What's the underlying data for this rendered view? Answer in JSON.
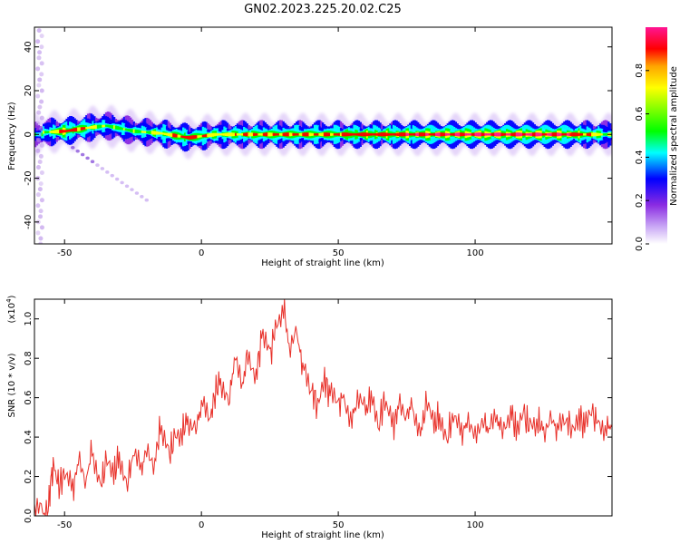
{
  "title": "GN02.2023.225.20.02.C25",
  "chart_data": [
    {
      "type": "heatmap",
      "xlabel": "Height of straight line (km)",
      "ylabel": "Frequency (Hz)",
      "xlim": [
        -61,
        150
      ],
      "ylim": [
        -50,
        49
      ],
      "xticks": [
        -50,
        0,
        50,
        100
      ],
      "yticks": [
        -40,
        -20,
        0,
        20,
        40
      ],
      "colorbar": {
        "label": "Normalized spectral amplitude",
        "range": [
          0.0,
          1.0
        ],
        "ticks": [
          "0.0",
          "0.2",
          "0.4",
          "0.6",
          "0.8"
        ],
        "colors": [
          "#ffffff",
          "#8a2be2",
          "#0000ff",
          "#00ffff",
          "#00ff00",
          "#ffff00",
          "#ff0000",
          "#ff1493"
        ]
      },
      "ridge": [
        {
          "x": -58,
          "y": 1,
          "amp": 0.6
        },
        {
          "x": -50,
          "y": 1.5,
          "amp": 0.9
        },
        {
          "x": -42,
          "y": 3,
          "amp": 0.75
        },
        {
          "x": -35,
          "y": 4,
          "amp": 0.6
        },
        {
          "x": -25,
          "y": 1.5,
          "amp": 0.6
        },
        {
          "x": -15,
          "y": 0.5,
          "amp": 0.7
        },
        {
          "x": -5,
          "y": -1.5,
          "amp": 0.85
        },
        {
          "x": 5,
          "y": 0,
          "amp": 0.7
        },
        {
          "x": 20,
          "y": 0,
          "amp": 0.8
        },
        {
          "x": 40,
          "y": 0,
          "amp": 0.8
        },
        {
          "x": 60,
          "y": 0,
          "amp": 0.85
        },
        {
          "x": 80,
          "y": 0,
          "amp": 0.9
        },
        {
          "x": 100,
          "y": 0,
          "amp": 0.95
        },
        {
          "x": 120,
          "y": 0,
          "amp": 0.95
        },
        {
          "x": 135,
          "y": 0,
          "amp": 0.9
        },
        {
          "x": 150,
          "y": 0,
          "amp": 0.6
        }
      ]
    },
    {
      "type": "line",
      "xlabel": "Height of straight line (km)",
      "ylabel": "SNR (10 * v/v)",
      "yscale_label": "(x10",
      "yscale_exp": "4",
      "xlim": [
        -61,
        150
      ],
      "ylim": [
        0.0,
        1.1
      ],
      "xticks": [
        -50,
        0,
        50,
        100
      ],
      "yticks": [
        "0.0",
        "0.2",
        "0.4",
        "0.6",
        "0.8",
        "1.0"
      ],
      "series": [
        {
          "color": "#e8312a",
          "x": [
            -61,
            -58,
            -56,
            -55,
            -54,
            -52,
            -50,
            -47,
            -45,
            -42,
            -40,
            -37,
            -35,
            -32,
            -30,
            -27,
            -25,
            -22,
            -20,
            -17,
            -15,
            -12,
            -10,
            -7,
            -5,
            -2,
            0,
            3,
            5,
            7,
            10,
            12,
            15,
            17,
            20,
            22,
            25,
            27,
            30,
            32,
            35,
            37,
            40,
            42,
            45,
            47,
            50,
            52,
            55,
            57,
            60,
            62,
            65,
            67,
            70,
            72,
            75,
            77,
            80,
            82,
            85,
            87,
            90,
            92,
            95,
            97,
            100,
            103,
            105,
            108,
            110,
            113,
            115,
            118,
            120,
            123,
            125,
            128,
            130,
            133,
            135,
            138,
            140,
            143,
            145,
            148,
            150
          ],
          "values": [
            0.02,
            0.01,
            0.03,
            0.18,
            0.25,
            0.15,
            0.22,
            0.12,
            0.28,
            0.18,
            0.35,
            0.15,
            0.25,
            0.2,
            0.32,
            0.18,
            0.3,
            0.22,
            0.35,
            0.28,
            0.45,
            0.3,
            0.38,
            0.42,
            0.5,
            0.45,
            0.55,
            0.48,
            0.62,
            0.7,
            0.58,
            0.78,
            0.65,
            0.85,
            0.72,
            0.9,
            0.8,
            0.96,
            1.08,
            0.85,
            0.92,
            0.75,
            0.65,
            0.58,
            0.7,
            0.6,
            0.55,
            0.62,
            0.5,
            0.58,
            0.52,
            0.62,
            0.48,
            0.6,
            0.45,
            0.55,
            0.5,
            0.58,
            0.42,
            0.55,
            0.45,
            0.52,
            0.42,
            0.5,
            0.4,
            0.48,
            0.45,
            0.5,
            0.42,
            0.48,
            0.45,
            0.55,
            0.42,
            0.5,
            0.45,
            0.48,
            0.44,
            0.5,
            0.42,
            0.48,
            0.47,
            0.52,
            0.44,
            0.5,
            0.48,
            0.46,
            0.45
          ]
        }
      ]
    }
  ]
}
